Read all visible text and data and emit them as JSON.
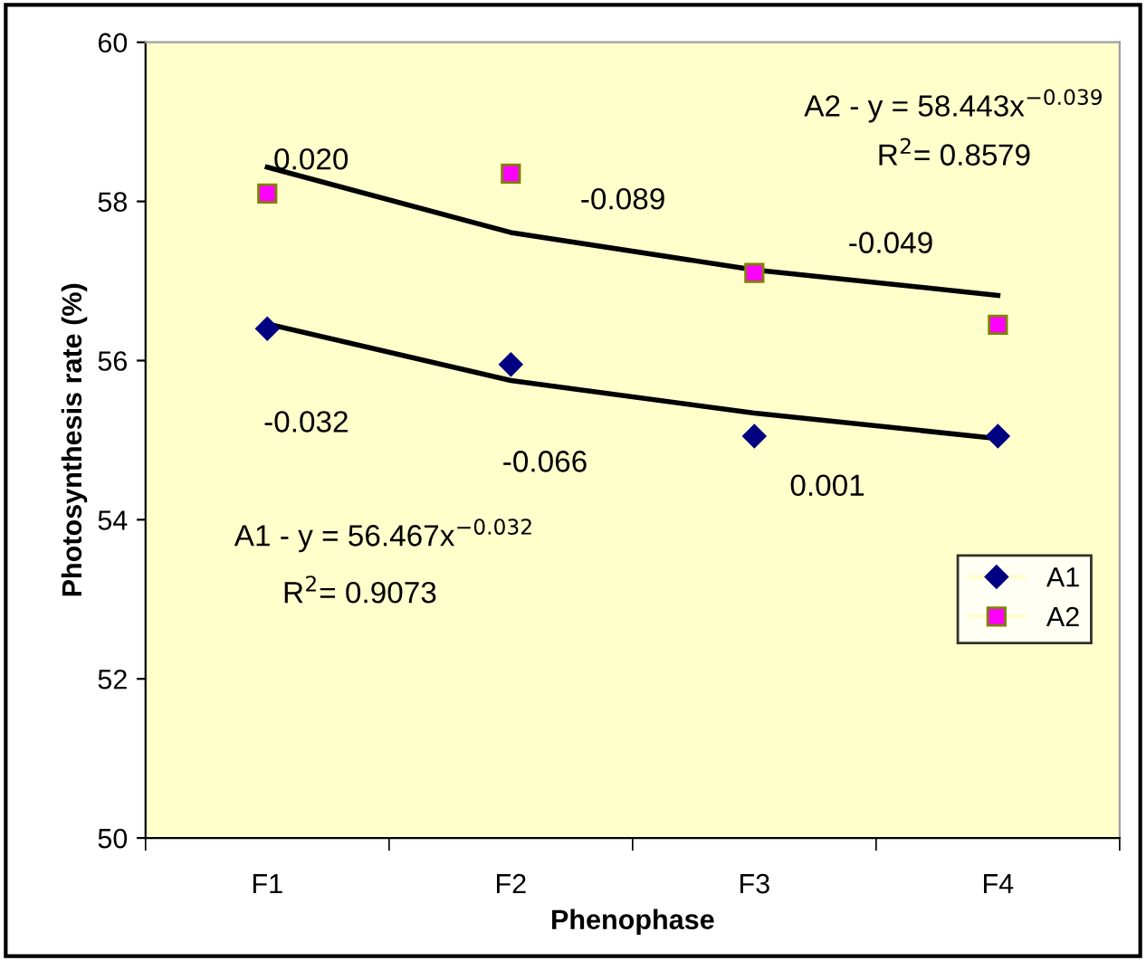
{
  "chart_data": {
    "type": "scatter",
    "xlabel": "Phenophase",
    "ylabel": "Photosynthesis rate (%)",
    "categories": [
      "F1",
      "F2",
      "F3",
      "F4"
    ],
    "series": [
      {
        "name": "A1",
        "color": "#000080",
        "marker": "diamond",
        "values": [
          56.4,
          55.95,
          55.05,
          55.05
        ]
      },
      {
        "name": "A2",
        "color": "#ff00ff",
        "marker": "square",
        "values": [
          58.1,
          58.35,
          57.1,
          56.45
        ]
      },
      {
        "type": "line",
        "color": "#000000",
        "values": [
          56.46,
          55.75,
          55.34,
          55.02
        ]
      },
      {
        "type": "line",
        "color": "#000000",
        "values": [
          58.43,
          57.61,
          57.14,
          56.82
        ]
      }
    ],
    "ylim": [
      50,
      60
    ],
    "yticks": [
      50,
      52,
      54,
      56,
      58,
      60
    ],
    "grid": false,
    "legend": "right",
    "annotations": [
      "A2 - y = 58.443x$^{−0.039}$",
      "R$^{2}$= 0.8579",
      "0.020",
      "-0.089",
      "-0.049",
      "-0.032",
      "-0.066",
      "0.001",
      "A1 - y = 56.467x$^{−0.032}$",
      "R$^{2}$= 0.9073"
    ]
  }
}
